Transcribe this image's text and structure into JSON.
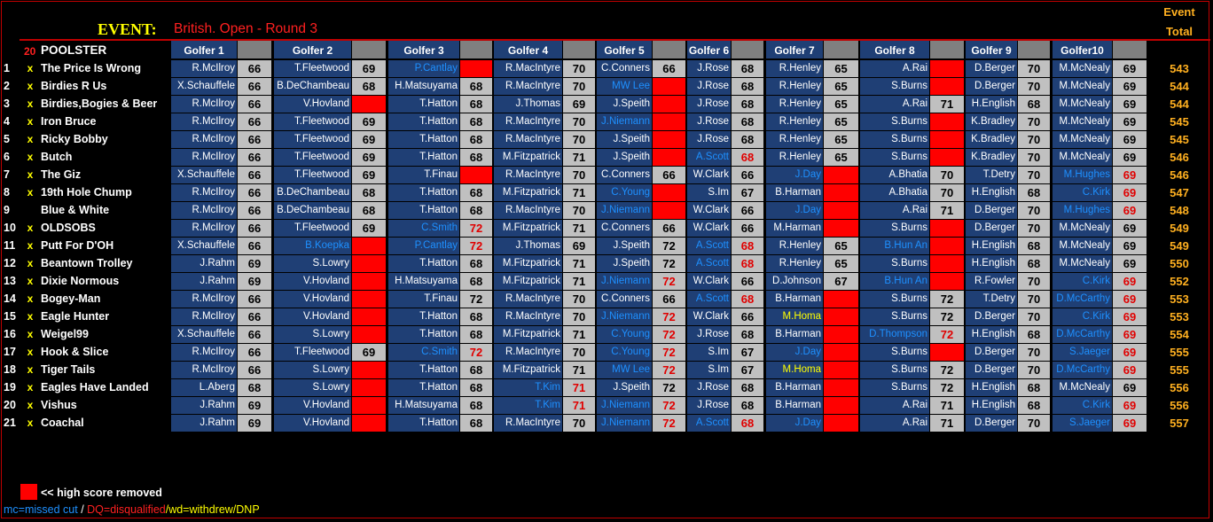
{
  "event": {
    "label": "EVENT:",
    "name": "British. Open - Round 3"
  },
  "top_headers": {
    "event": "Event",
    "total": "Total"
  },
  "header": {
    "count": "20",
    "poolster": "POOLSTER",
    "golfers": [
      "Golfer 1",
      "Golfer 2",
      "Golfer 3",
      "Golfer 4",
      "Golfer 5",
      "Golfer 6",
      "Golfer 7",
      "Golfer 8",
      "Golfer 9",
      "Golfer10"
    ]
  },
  "colors": {
    "name_bg": "#1f3f75",
    "score_bg": "#c0c0c0",
    "removed": "#ff0000",
    "total": "#ffb020",
    "mc": "#1e90ff",
    "wd": "#ffff00"
  },
  "rows": [
    {
      "num": "1",
      "x": "x",
      "name": "The Price Is Wrong",
      "total": "543",
      "picks": [
        {
          "n": "R.McIlroy",
          "s": "66"
        },
        {
          "n": "T.Fleetwood",
          "s": "69"
        },
        {
          "n": "P.Cantlay",
          "s": "",
          "st": "mc",
          "r": 1
        },
        {
          "n": "R.MacIntyre",
          "s": "70"
        },
        {
          "n": "C.Conners",
          "s": "66"
        },
        {
          "n": "J.Rose",
          "s": "68"
        },
        {
          "n": "R.Henley",
          "s": "65"
        },
        {
          "n": "A.Rai",
          "s": "",
          "r": 1
        },
        {
          "n": "D.Berger",
          "s": "70"
        },
        {
          "n": "M.McNealy",
          "s": "69"
        }
      ]
    },
    {
      "num": "2",
      "x": "x",
      "name": "Birdies R Us",
      "total": "544",
      "picks": [
        {
          "n": "X.Schauffele",
          "s": "66"
        },
        {
          "n": "B.DeChambeau",
          "s": "68"
        },
        {
          "n": "H.Matsuyama",
          "s": "68"
        },
        {
          "n": "R.MacIntyre",
          "s": "70"
        },
        {
          "n": "MW Lee",
          "s": "",
          "st": "mc",
          "r": 1
        },
        {
          "n": "J.Rose",
          "s": "68"
        },
        {
          "n": "R.Henley",
          "s": "65"
        },
        {
          "n": "S.Burns",
          "s": "",
          "r": 1
        },
        {
          "n": "D.Berger",
          "s": "70"
        },
        {
          "n": "M.McNealy",
          "s": "69"
        }
      ]
    },
    {
      "num": "3",
      "x": "x",
      "name": "Birdies,Bogies & Beer",
      "total": "544",
      "picks": [
        {
          "n": "R.McIlroy",
          "s": "66"
        },
        {
          "n": "V.Hovland",
          "s": "",
          "r": 1
        },
        {
          "n": "T.Hatton",
          "s": "68"
        },
        {
          "n": "J.Thomas",
          "s": "69"
        },
        {
          "n": "J.Speith",
          "s": "",
          "r": 1
        },
        {
          "n": "J.Rose",
          "s": "68"
        },
        {
          "n": "R.Henley",
          "s": "65"
        },
        {
          "n": "A.Rai",
          "s": "71"
        },
        {
          "n": "H.English",
          "s": "68"
        },
        {
          "n": "M.McNealy",
          "s": "69"
        }
      ]
    },
    {
      "num": "4",
      "x": "x",
      "name": "Iron Bruce",
      "total": "545",
      "picks": [
        {
          "n": "R.McIlroy",
          "s": "66"
        },
        {
          "n": "T.Fleetwood",
          "s": "69"
        },
        {
          "n": "T.Hatton",
          "s": "68"
        },
        {
          "n": "R.MacIntyre",
          "s": "70"
        },
        {
          "n": "J.Niemann",
          "s": "",
          "st": "mc",
          "r": 1
        },
        {
          "n": "J.Rose",
          "s": "68"
        },
        {
          "n": "R.Henley",
          "s": "65"
        },
        {
          "n": "S.Burns",
          "s": "",
          "r": 1
        },
        {
          "n": "K.Bradley",
          "s": "70"
        },
        {
          "n": "M.McNealy",
          "s": "69"
        }
      ]
    },
    {
      "num": "5",
      "x": "x",
      "name": "Ricky Bobby",
      "total": "545",
      "picks": [
        {
          "n": "R.McIlroy",
          "s": "66"
        },
        {
          "n": "T.Fleetwood",
          "s": "69"
        },
        {
          "n": "T.Hatton",
          "s": "68"
        },
        {
          "n": "R.MacIntyre",
          "s": "70"
        },
        {
          "n": "J.Speith",
          "s": "",
          "r": 1
        },
        {
          "n": "J.Rose",
          "s": "68"
        },
        {
          "n": "R.Henley",
          "s": "65"
        },
        {
          "n": "S.Burns",
          "s": "",
          "r": 1
        },
        {
          "n": "K.Bradley",
          "s": "70"
        },
        {
          "n": "M.McNealy",
          "s": "69"
        }
      ]
    },
    {
      "num": "6",
      "x": "x",
      "name": "Butch",
      "total": "546",
      "picks": [
        {
          "n": "R.McIlroy",
          "s": "66"
        },
        {
          "n": "T.Fleetwood",
          "s": "69"
        },
        {
          "n": "T.Hatton",
          "s": "68"
        },
        {
          "n": "M.Fitzpatrick",
          "s": "71"
        },
        {
          "n": "J.Speith",
          "s": "",
          "r": 1
        },
        {
          "n": "A.Scott",
          "s": "68",
          "st": "mc",
          "hi": 1
        },
        {
          "n": "R.Henley",
          "s": "65"
        },
        {
          "n": "S.Burns",
          "s": "",
          "r": 1
        },
        {
          "n": "K.Bradley",
          "s": "70"
        },
        {
          "n": "M.McNealy",
          "s": "69"
        }
      ]
    },
    {
      "num": "7",
      "x": "x",
      "name": "The Giz",
      "total": "546",
      "picks": [
        {
          "n": "X.Schauffele",
          "s": "66"
        },
        {
          "n": "T.Fleetwood",
          "s": "69"
        },
        {
          "n": "T.Finau",
          "s": "",
          "r": 1
        },
        {
          "n": "R.MacIntyre",
          "s": "70"
        },
        {
          "n": "C.Conners",
          "s": "66"
        },
        {
          "n": "W.Clark",
          "s": "66"
        },
        {
          "n": "J.Day",
          "s": "",
          "st": "mc",
          "r": 1
        },
        {
          "n": "A.Bhatia",
          "s": "70"
        },
        {
          "n": "T.Detry",
          "s": "70"
        },
        {
          "n": "M.Hughes",
          "s": "69",
          "st": "mc",
          "hi": 1
        }
      ]
    },
    {
      "num": "8",
      "x": "x",
      "name": "19th Hole Chump",
      "total": "547",
      "picks": [
        {
          "n": "R.McIlroy",
          "s": "66"
        },
        {
          "n": "B.DeChambeau",
          "s": "68"
        },
        {
          "n": "T.Hatton",
          "s": "68"
        },
        {
          "n": "M.Fitzpatrick",
          "s": "71"
        },
        {
          "n": "C.Young",
          "s": "",
          "st": "mc",
          "r": 1
        },
        {
          "n": "S.Im",
          "s": "67"
        },
        {
          "n": "B.Harman",
          "s": "",
          "r": 1
        },
        {
          "n": "A.Bhatia",
          "s": "70"
        },
        {
          "n": "H.English",
          "s": "68"
        },
        {
          "n": "C.Kirk",
          "s": "69",
          "st": "mc",
          "hi": 1
        }
      ]
    },
    {
      "num": "9",
      "x": "",
      "name": "Blue & White",
      "total": "548",
      "picks": [
        {
          "n": "R.McIlroy",
          "s": "66"
        },
        {
          "n": "B.DeChambeau",
          "s": "68"
        },
        {
          "n": "T.Hatton",
          "s": "68"
        },
        {
          "n": "R.MacIntyre",
          "s": "70"
        },
        {
          "n": "J.Niemann",
          "s": "",
          "st": "mc",
          "r": 1
        },
        {
          "n": "W.Clark",
          "s": "66"
        },
        {
          "n": "J.Day",
          "s": "",
          "st": "mc",
          "r": 1
        },
        {
          "n": "A.Rai",
          "s": "71"
        },
        {
          "n": "D.Berger",
          "s": "70"
        },
        {
          "n": "M.Hughes",
          "s": "69",
          "st": "mc",
          "hi": 1
        }
      ]
    },
    {
      "num": "10",
      "x": "x",
      "name": "OLDSOBS",
      "total": "549",
      "picks": [
        {
          "n": "R.McIlroy",
          "s": "66"
        },
        {
          "n": "T.Fleetwood",
          "s": "69"
        },
        {
          "n": "C.Smith",
          "s": "72",
          "st": "mc",
          "hi": 1
        },
        {
          "n": "M.Fitzpatrick",
          "s": "71"
        },
        {
          "n": "C.Conners",
          "s": "66"
        },
        {
          "n": "W.Clark",
          "s": "66"
        },
        {
          "n": "M.Harman",
          "s": "",
          "r": 1
        },
        {
          "n": "S.Burns",
          "s": "",
          "r": 1
        },
        {
          "n": "D.Berger",
          "s": "70"
        },
        {
          "n": "M.McNealy",
          "s": "69"
        }
      ]
    },
    {
      "num": "11",
      "x": "x",
      "name": "Putt For D'OH",
      "total": "549",
      "picks": [
        {
          "n": "X.Schauffele",
          "s": "66"
        },
        {
          "n": "B.Koepka",
          "s": "",
          "st": "mc",
          "r": 1
        },
        {
          "n": "P.Cantlay",
          "s": "72",
          "st": "mc",
          "hi": 1
        },
        {
          "n": "J.Thomas",
          "s": "69"
        },
        {
          "n": "J.Speith",
          "s": "72"
        },
        {
          "n": "A.Scott",
          "s": "68",
          "st": "mc",
          "hi": 1
        },
        {
          "n": "R.Henley",
          "s": "65"
        },
        {
          "n": "B.Hun An",
          "s": "",
          "st": "mc",
          "r": 1
        },
        {
          "n": "H.English",
          "s": "68"
        },
        {
          "n": "M.McNealy",
          "s": "69"
        }
      ]
    },
    {
      "num": "12",
      "x": "x",
      "name": "Beantown Trolley",
      "total": "550",
      "picks": [
        {
          "n": "J.Rahm",
          "s": "69"
        },
        {
          "n": "S.Lowry",
          "s": "",
          "r": 1
        },
        {
          "n": "T.Hatton",
          "s": "68"
        },
        {
          "n": "M.Fitzpatrick",
          "s": "71"
        },
        {
          "n": "J.Speith",
          "s": "72"
        },
        {
          "n": "A.Scott",
          "s": "68",
          "st": "mc",
          "hi": 1
        },
        {
          "n": "R.Henley",
          "s": "65"
        },
        {
          "n": "S.Burns",
          "s": "",
          "r": 1
        },
        {
          "n": "H.English",
          "s": "68"
        },
        {
          "n": "M.McNealy",
          "s": "69"
        }
      ]
    },
    {
      "num": "13",
      "x": "x",
      "name": "Dixie Normous",
      "total": "552",
      "picks": [
        {
          "n": "J.Rahm",
          "s": "69"
        },
        {
          "n": "V.Hovland",
          "s": "",
          "r": 1
        },
        {
          "n": "H.Matsuyama",
          "s": "68"
        },
        {
          "n": "M.Fitzpatrick",
          "s": "71"
        },
        {
          "n": "J.Niemann",
          "s": "72",
          "st": "mc",
          "hi": 1
        },
        {
          "n": "W.Clark",
          "s": "66"
        },
        {
          "n": "D.Johnson",
          "s": "67"
        },
        {
          "n": "B.Hun An",
          "s": "",
          "st": "mc",
          "r": 1
        },
        {
          "n": "R.Fowler",
          "s": "70"
        },
        {
          "n": "C.Kirk",
          "s": "69",
          "st": "mc",
          "hi": 1
        }
      ]
    },
    {
      "num": "14",
      "x": "x",
      "name": "Bogey-Man",
      "total": "553",
      "picks": [
        {
          "n": "R.McIlroy",
          "s": "66"
        },
        {
          "n": "V.Hovland",
          "s": "",
          "r": 1
        },
        {
          "n": "T.Finau",
          "s": "72"
        },
        {
          "n": "R.MacIntyre",
          "s": "70"
        },
        {
          "n": "C.Conners",
          "s": "66"
        },
        {
          "n": "A.Scott",
          "s": "68",
          "st": "mc",
          "hi": 1
        },
        {
          "n": "B.Harman",
          "s": "",
          "r": 1
        },
        {
          "n": "S.Burns",
          "s": "72"
        },
        {
          "n": "T.Detry",
          "s": "70"
        },
        {
          "n": "D.McCarthy",
          "s": "69",
          "st": "mc",
          "hi": 1
        }
      ]
    },
    {
      "num": "15",
      "x": "x",
      "name": "Eagle Hunter",
      "total": "553",
      "picks": [
        {
          "n": "R.McIlroy",
          "s": "66"
        },
        {
          "n": "V.Hovland",
          "s": "",
          "r": 1
        },
        {
          "n": "T.Hatton",
          "s": "68"
        },
        {
          "n": "R.MacIntyre",
          "s": "70"
        },
        {
          "n": "J.Niemann",
          "s": "72",
          "st": "mc",
          "hi": 1
        },
        {
          "n": "W.Clark",
          "s": "66"
        },
        {
          "n": "M.Homa",
          "s": "",
          "st": "wd",
          "r": 1
        },
        {
          "n": "S.Burns",
          "s": "72"
        },
        {
          "n": "D.Berger",
          "s": "70"
        },
        {
          "n": "C.Kirk",
          "s": "69",
          "st": "mc",
          "hi": 1
        }
      ]
    },
    {
      "num": "16",
      "x": "x",
      "name": "Weigel99",
      "total": "554",
      "picks": [
        {
          "n": "X.Schauffele",
          "s": "66"
        },
        {
          "n": "S.Lowry",
          "s": "",
          "r": 1
        },
        {
          "n": "T.Hatton",
          "s": "68"
        },
        {
          "n": "M.Fitzpatrick",
          "s": "71"
        },
        {
          "n": "C.Young",
          "s": "72",
          "st": "mc",
          "hi": 1
        },
        {
          "n": "J.Rose",
          "s": "68"
        },
        {
          "n": "B.Harman",
          "s": "",
          "r": 1
        },
        {
          "n": "D.Thompson",
          "s": "72",
          "st": "mc",
          "hi": 1
        },
        {
          "n": "H.English",
          "s": "68"
        },
        {
          "n": "D.McCarthy",
          "s": "69",
          "st": "mc",
          "hi": 1
        }
      ]
    },
    {
      "num": "17",
      "x": "x",
      "name": "Hook & Slice",
      "total": "555",
      "picks": [
        {
          "n": "R.McIlroy",
          "s": "66"
        },
        {
          "n": "T.Fleetwood",
          "s": "69"
        },
        {
          "n": "C.Smith",
          "s": "72",
          "st": "mc",
          "hi": 1
        },
        {
          "n": "R.MacIntyre",
          "s": "70"
        },
        {
          "n": "C.Young",
          "s": "72",
          "st": "mc",
          "hi": 1
        },
        {
          "n": "S.Im",
          "s": "67"
        },
        {
          "n": "J.Day",
          "s": "",
          "st": "mc",
          "r": 1
        },
        {
          "n": "S.Burns",
          "s": "",
          "r": 1
        },
        {
          "n": "D.Berger",
          "s": "70"
        },
        {
          "n": "S.Jaeger",
          "s": "69",
          "st": "mc",
          "hi": 1
        }
      ]
    },
    {
      "num": "18",
      "x": "x",
      "name": "Tiger Tails",
      "total": "555",
      "picks": [
        {
          "n": "R.McIlroy",
          "s": "66"
        },
        {
          "n": "S.Lowry",
          "s": "",
          "r": 1
        },
        {
          "n": "T.Hatton",
          "s": "68"
        },
        {
          "n": "M.Fitzpatrick",
          "s": "71"
        },
        {
          "n": "MW Lee",
          "s": "72",
          "st": "mc",
          "hi": 1
        },
        {
          "n": "S.Im",
          "s": "67"
        },
        {
          "n": "M.Homa",
          "s": "",
          "st": "wd",
          "r": 1
        },
        {
          "n": "S.Burns",
          "s": "72"
        },
        {
          "n": "D.Berger",
          "s": "70"
        },
        {
          "n": "D.McCarthy",
          "s": "69",
          "st": "mc",
          "hi": 1
        }
      ]
    },
    {
      "num": "19",
      "x": "x",
      "name": "Eagles Have Landed",
      "total": "556",
      "picks": [
        {
          "n": "L.Aberg",
          "s": "68"
        },
        {
          "n": "S.Lowry",
          "s": "",
          "r": 1
        },
        {
          "n": "T.Hatton",
          "s": "68"
        },
        {
          "n": "T.Kim",
          "s": "71",
          "st": "mc",
          "hi": 1
        },
        {
          "n": "J.Speith",
          "s": "72"
        },
        {
          "n": "J.Rose",
          "s": "68"
        },
        {
          "n": "B.Harman",
          "s": "",
          "r": 1
        },
        {
          "n": "S.Burns",
          "s": "72"
        },
        {
          "n": "H.English",
          "s": "68"
        },
        {
          "n": "M.McNealy",
          "s": "69"
        }
      ]
    },
    {
      "num": "20",
      "x": "x",
      "name": "Vishus",
      "total": "556",
      "picks": [
        {
          "n": "J.Rahm",
          "s": "69"
        },
        {
          "n": "V.Hovland",
          "s": "",
          "r": 1
        },
        {
          "n": "H.Matsuyama",
          "s": "68"
        },
        {
          "n": "T.Kim",
          "s": "71",
          "st": "mc",
          "hi": 1
        },
        {
          "n": "J.Niemann",
          "s": "72",
          "st": "mc",
          "hi": 1
        },
        {
          "n": "J.Rose",
          "s": "68"
        },
        {
          "n": "B.Harman",
          "s": "",
          "r": 1
        },
        {
          "n": "A.Rai",
          "s": "71"
        },
        {
          "n": "H.English",
          "s": "68"
        },
        {
          "n": "C.Kirk",
          "s": "69",
          "st": "mc",
          "hi": 1
        }
      ]
    },
    {
      "num": "21",
      "x": "x",
      "name": "Coachal",
      "total": "557",
      "picks": [
        {
          "n": "J.Rahm",
          "s": "69"
        },
        {
          "n": "V.Hovland",
          "s": "",
          "r": 1
        },
        {
          "n": "T.Hatton",
          "s": "68"
        },
        {
          "n": "R.MacIntyre",
          "s": "70"
        },
        {
          "n": "J.Niemann",
          "s": "72",
          "st": "mc",
          "hi": 1
        },
        {
          "n": "A.Scott",
          "s": "68",
          "st": "mc",
          "hi": 1
        },
        {
          "n": "J.Day",
          "s": "",
          "st": "mc",
          "r": 1
        },
        {
          "n": "A.Rai",
          "s": "71"
        },
        {
          "n": "D.Berger",
          "s": "70"
        },
        {
          "n": "S.Jaeger",
          "s": "69",
          "st": "mc",
          "hi": 1
        }
      ]
    }
  ],
  "legend": {
    "removed": "<< high score removed",
    "mc": "mc=missed cut",
    "sep": " / ",
    "dq": "DQ=disqualified",
    "wd": "/wd=withdrew/DNP"
  }
}
